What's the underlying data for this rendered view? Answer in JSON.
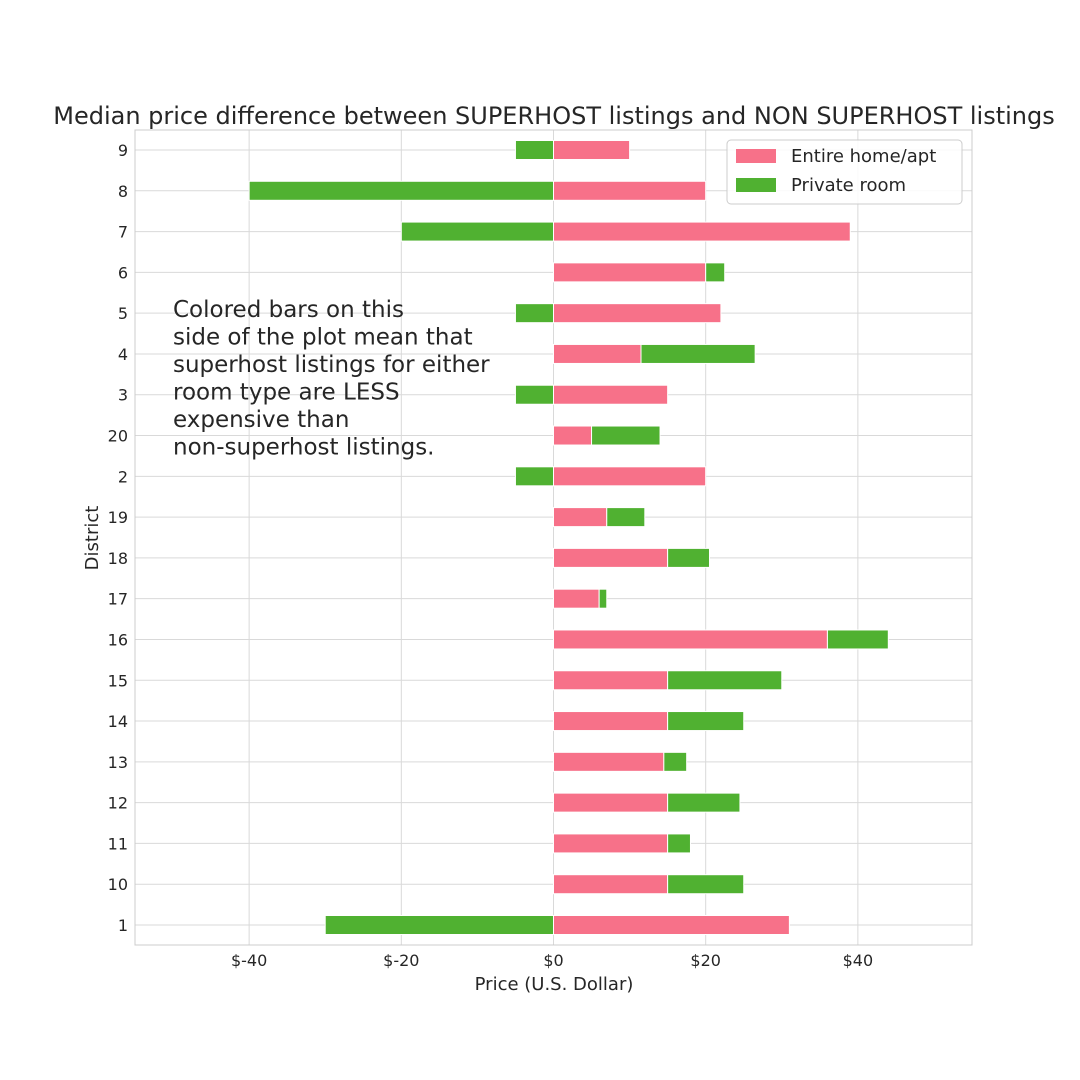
{
  "chart_data": {
    "type": "bar",
    "orientation": "horizontal",
    "stacked": true,
    "title": "Median price difference between SUPERHOST listings and NON SUPERHOST listings",
    "xlabel": "Price (U.S. Dollar)",
    "ylabel": "District",
    "xlim": [
      -55,
      55
    ],
    "xticks": [
      -40,
      -20,
      0,
      20,
      40
    ],
    "xtick_labels": [
      "$-40",
      "$-20",
      "$0",
      "$20",
      "$40"
    ],
    "grid": true,
    "legend_position": "top-right",
    "categories": [
      "1",
      "10",
      "11",
      "12",
      "13",
      "14",
      "15",
      "16",
      "17",
      "18",
      "19",
      "2",
      "20",
      "3",
      "4",
      "5",
      "6",
      "7",
      "8",
      "9"
    ],
    "series": [
      {
        "name": "Entire home/apt",
        "color": "#f77189",
        "values": [
          31,
          15,
          15,
          15,
          14.5,
          15,
          15,
          36,
          6,
          15,
          7,
          20,
          5,
          15,
          11.5,
          22,
          20,
          39,
          20,
          10
        ]
      },
      {
        "name": "Private room",
        "color": "#50b131",
        "values": [
          -30,
          10,
          3,
          9.5,
          3,
          10,
          15,
          8,
          1,
          5.5,
          5,
          -5,
          9,
          -5,
          15,
          -5,
          2.5,
          -20,
          -40,
          -5
        ]
      }
    ],
    "annotation": {
      "lines": [
        "Colored bars on this",
        "side of the plot mean that",
        "superhost listings for either",
        "room type are LESS",
        "expensive than",
        "non-superhost listings."
      ]
    }
  }
}
